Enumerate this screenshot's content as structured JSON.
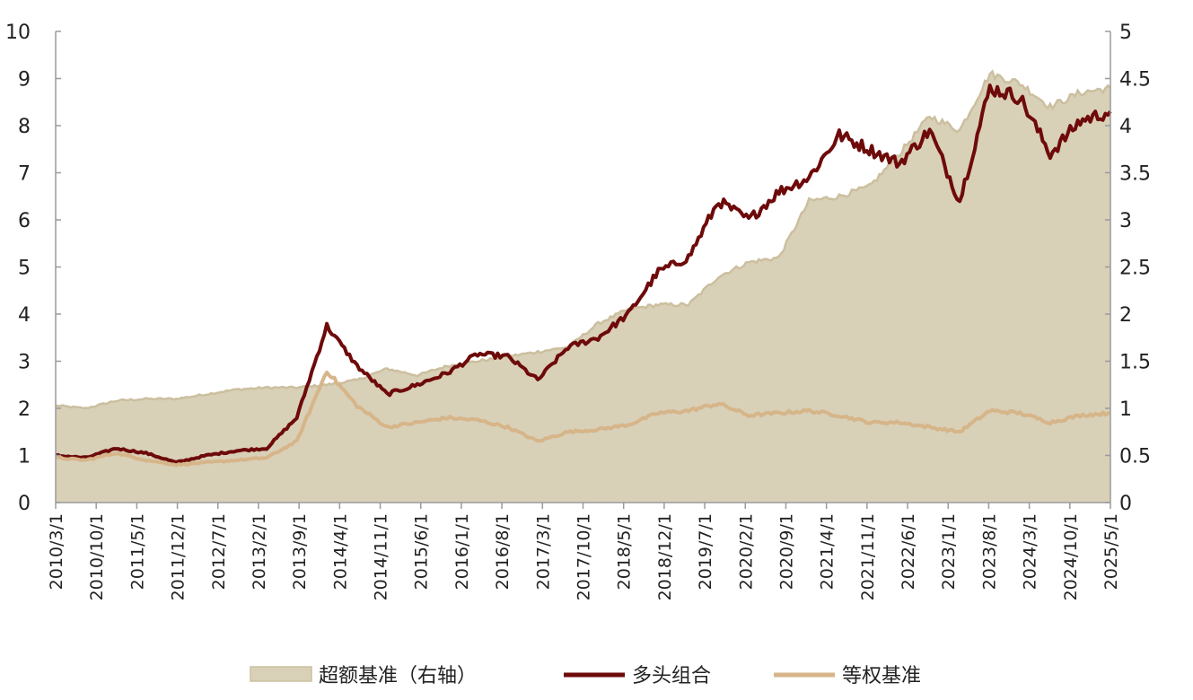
{
  "chart_data": {
    "type": "line",
    "title": "",
    "xlabel": "",
    "ylabel": "",
    "ylim_left": [
      0,
      10
    ],
    "ylim_right": [
      0,
      5
    ],
    "left_ticks": [
      "0",
      "1",
      "2",
      "3",
      "4",
      "5",
      "6",
      "7",
      "8",
      "9",
      "10"
    ],
    "right_ticks": [
      "0",
      "0.5",
      "1",
      "1.5",
      "2",
      "2.5",
      "3",
      "3.5",
      "4",
      "4.5",
      "5"
    ],
    "x_ticks": [
      "2010/3/1",
      "2010/10/1",
      "2011/5/1",
      "2011/12/1",
      "2012/7/1",
      "2013/2/1",
      "2013/9/1",
      "2014/4/1",
      "2014/11/1",
      "2015/6/1",
      "2016/1/1",
      "2016/8/1",
      "2017/3/1",
      "2017/10/1",
      "2018/5/1",
      "2018/12/1",
      "2019/7/1",
      "2020/2/1",
      "2020/9/1",
      "2021/4/1",
      "2021/11/1",
      "2022/6/1",
      "2023/1/1",
      "2023/8/1",
      "2024/3/1",
      "2024/10/1",
      "2025/5/1"
    ],
    "grid": false,
    "legend_position": "bottom",
    "colors": {
      "excess": "#d9d0b8",
      "excess_line": "#cbbf9f",
      "longonly": "#6e0a0a",
      "equal": "#d6b589"
    },
    "series": [
      {
        "name": "超额基准（右轴）",
        "axis": "right",
        "kind": "area",
        "values": [
          1.03,
          1.0,
          1.08,
          1.1,
          1.1,
          1.15,
          1.2,
          1.22,
          1.22,
          1.25,
          1.3,
          1.42,
          1.35,
          1.45,
          1.5,
          1.55,
          1.6,
          1.65,
          1.9,
          2.05,
          2.1,
          2.1,
          2.4,
          2.55,
          2.6,
          3.2,
          3.25,
          3.35,
          3.7,
          4.1,
          3.95,
          4.55,
          4.45,
          4.2,
          4.35,
          4.4
        ]
      },
      {
        "name": "多头组合",
        "axis": "left",
        "kind": "line",
        "values": [
          1.0,
          0.95,
          1.15,
          1.05,
          0.85,
          1.0,
          1.1,
          1.15,
          1.8,
          3.75,
          2.9,
          2.3,
          2.5,
          2.75,
          3.15,
          3.1,
          2.6,
          3.3,
          3.5,
          4.0,
          4.9,
          5.2,
          6.4,
          6.0,
          6.6,
          6.9,
          7.8,
          7.5,
          7.2,
          7.9,
          6.4,
          8.8,
          8.6,
          7.4,
          8.1,
          8.3
        ]
      },
      {
        "name": "等权基准",
        "axis": "left",
        "kind": "line",
        "values": [
          0.95,
          0.9,
          1.05,
          0.9,
          0.8,
          0.85,
          0.9,
          0.95,
          1.3,
          2.8,
          2.05,
          1.6,
          1.7,
          1.8,
          1.75,
          1.6,
          1.3,
          1.5,
          1.55,
          1.65,
          1.9,
          1.95,
          2.1,
          1.85,
          1.9,
          1.95,
          1.85,
          1.7,
          1.7,
          1.6,
          1.5,
          1.95,
          1.9,
          1.7,
          1.85,
          1.9
        ]
      }
    ]
  }
}
